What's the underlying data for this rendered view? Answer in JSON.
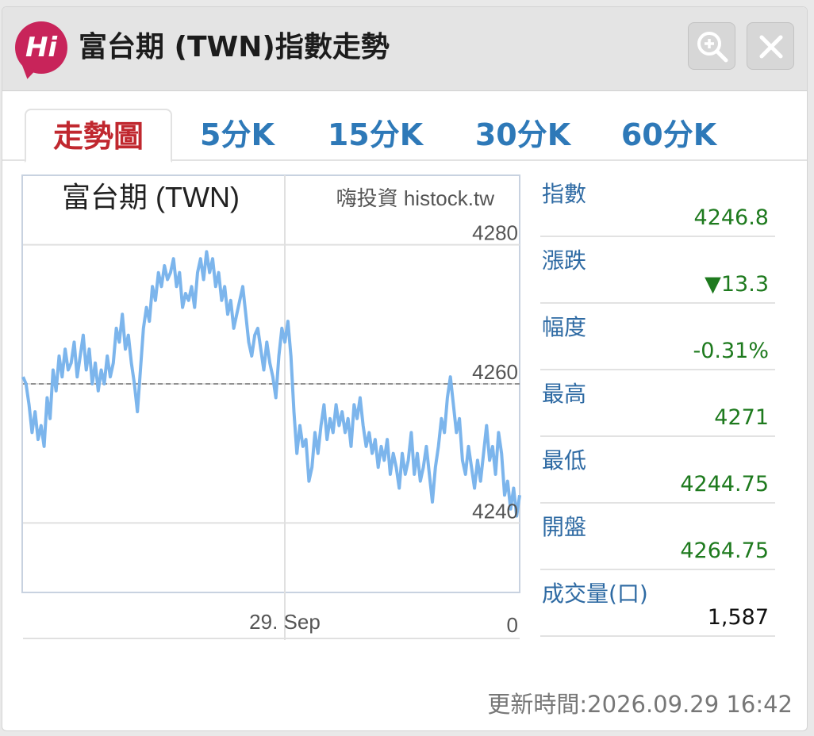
{
  "header": {
    "logo_text": "Hi",
    "title": "富台期 (TWN)指數走勢",
    "zoom_icon": "zoom-in-icon",
    "close_icon": "close-icon"
  },
  "tabs": [
    {
      "label": "走勢圖",
      "active": true
    },
    {
      "label": "5分K",
      "active": false
    },
    {
      "label": "15分K",
      "active": false
    },
    {
      "label": "30分K",
      "active": false
    },
    {
      "label": "60分K",
      "active": false
    }
  ],
  "chart_data": {
    "type": "line",
    "title": "富台期 (TWN)",
    "credit": "嗨投資 histock.tw",
    "ylim": [
      4230,
      4290
    ],
    "yticks": [
      4240,
      4260,
      4280
    ],
    "ytick_labels": [
      "4240",
      "4260",
      "4280"
    ],
    "reference_value": 4260,
    "x_label": "29. Sep",
    "volume_label": "0",
    "line_color": "#7cb5ec",
    "series": [
      {
        "values": [
          4261,
          4260,
          4257,
          4253,
          4256,
          4252,
          4254,
          4251,
          4258,
          4255,
          4262,
          4259,
          4264,
          4261,
          4265,
          4262,
          4263,
          4266,
          4261,
          4264,
          4267,
          4262,
          4265,
          4260,
          4263,
          4259,
          4262,
          4260,
          4264,
          4261,
          4263,
          4268,
          4266,
          4270,
          4265,
          4267,
          4263,
          4260,
          4256,
          4262,
          4268,
          4271,
          4269,
          4274,
          4272,
          4276,
          4274,
          4277,
          4275,
          4276,
          4278,
          4274,
          4276,
          4271,
          4273,
          4272,
          4274,
          4271,
          4276,
          4278,
          4275,
          4279,
          4276,
          4278,
          4274,
          4276,
          4272,
          4274,
          4270,
          4272,
          4268,
          4270,
          4272,
          4274,
          4270,
          4266,
          4264,
          4267,
          4268,
          4265,
          4262,
          4266,
          4263,
          4261,
          4258,
          4264,
          4268,
          4266,
          4269,
          4264,
          4256,
          4250,
          4254,
          4251,
          4252,
          4246,
          4248,
          4253,
          4250,
          4254,
          4257,
          4252,
          4255,
          4253,
          4257,
          4254,
          4256,
          4253,
          4255,
          4251,
          4257,
          4255,
          4258,
          4254,
          4251,
          4253,
          4250,
          4252,
          4248,
          4251,
          4249,
          4252,
          4247,
          4250,
          4248,
          4245,
          4250,
          4247,
          4249,
          4253,
          4247,
          4250,
          4246,
          4248,
          4251,
          4247,
          4243,
          4248,
          4251,
          4255,
          4253,
          4258,
          4261,
          4257,
          4253,
          4255,
          4249,
          4247,
          4251,
          4248,
          4245,
          4249,
          4246,
          4250,
          4254,
          4249,
          4251,
          4247,
          4253,
          4250,
          4244,
          4246,
          4242,
          4245,
          4241,
          4244
        ]
      }
    ],
    "grid": true
  },
  "stats": [
    {
      "label": "指數",
      "value": "4246.8",
      "color": "#1e7a1e"
    },
    {
      "label": "漲跌",
      "value": "▼13.3",
      "color": "#1e7a1e"
    },
    {
      "label": "幅度",
      "value": "-0.31%",
      "color": "#1e7a1e"
    },
    {
      "label": "最高",
      "value": "4271",
      "color": "#1e7a1e"
    },
    {
      "label": "最低",
      "value": "4244.75",
      "color": "#1e7a1e"
    },
    {
      "label": "開盤",
      "value": "4264.75",
      "color": "#1e7a1e"
    },
    {
      "label": "成交量(口)",
      "value": "1,587",
      "color": "#111111"
    }
  ],
  "footer": {
    "updated": "更新時間:2026.09.29 16:42"
  }
}
